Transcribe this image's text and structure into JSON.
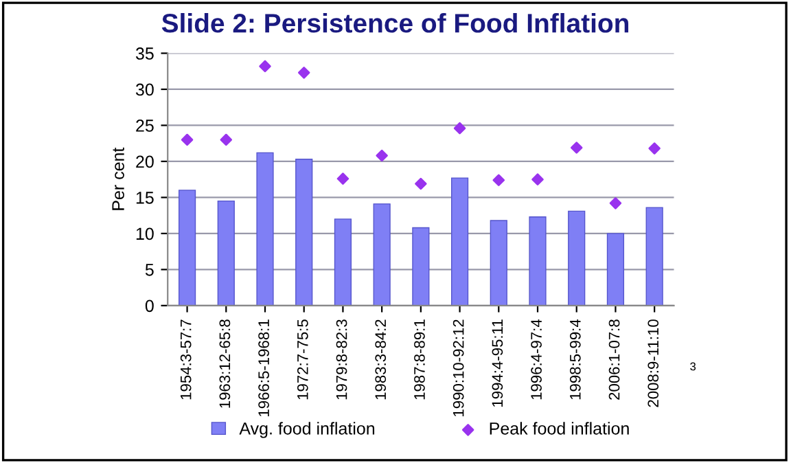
{
  "chart_data": {
    "type": "bar",
    "title": "Slide 2: Persistence of Food Inflation",
    "ylabel": "Per cent",
    "categories": [
      "1954:3-57:7",
      "1963:12-65:8",
      "1966:5-1968:1",
      "1972:7-75:5",
      "1979:8-82:3",
      "1983:3-84:2",
      "1987:8-89:1",
      "1990:10-92:12",
      "1994:4-95:11",
      "1996:4-97:4",
      "1998:5-99:4",
      "2006:1-07:8",
      "2008:9-11:10"
    ],
    "series": [
      {
        "name": "Avg. food inflation",
        "color": "#7f7ff5",
        "values": [
          16,
          14.5,
          21.2,
          20.3,
          12,
          14.1,
          10.8,
          17.7,
          11.8,
          12.3,
          13.1,
          10,
          13.6
        ]
      },
      {
        "name": "Peak food inflation",
        "type": "scatter",
        "marker": "diamond",
        "color": "#9933ee",
        "values": [
          23,
          23,
          33.2,
          32.3,
          17.6,
          20.8,
          16.9,
          24.6,
          17.4,
          17.5,
          21.9,
          14.2,
          21.8
        ]
      }
    ],
    "ylim": [
      0,
      35
    ],
    "yticks": [
      0,
      5,
      10,
      15,
      20,
      25,
      30,
      35
    ],
    "grid": "y",
    "legend": "bottom",
    "annotations": [
      "3"
    ]
  }
}
